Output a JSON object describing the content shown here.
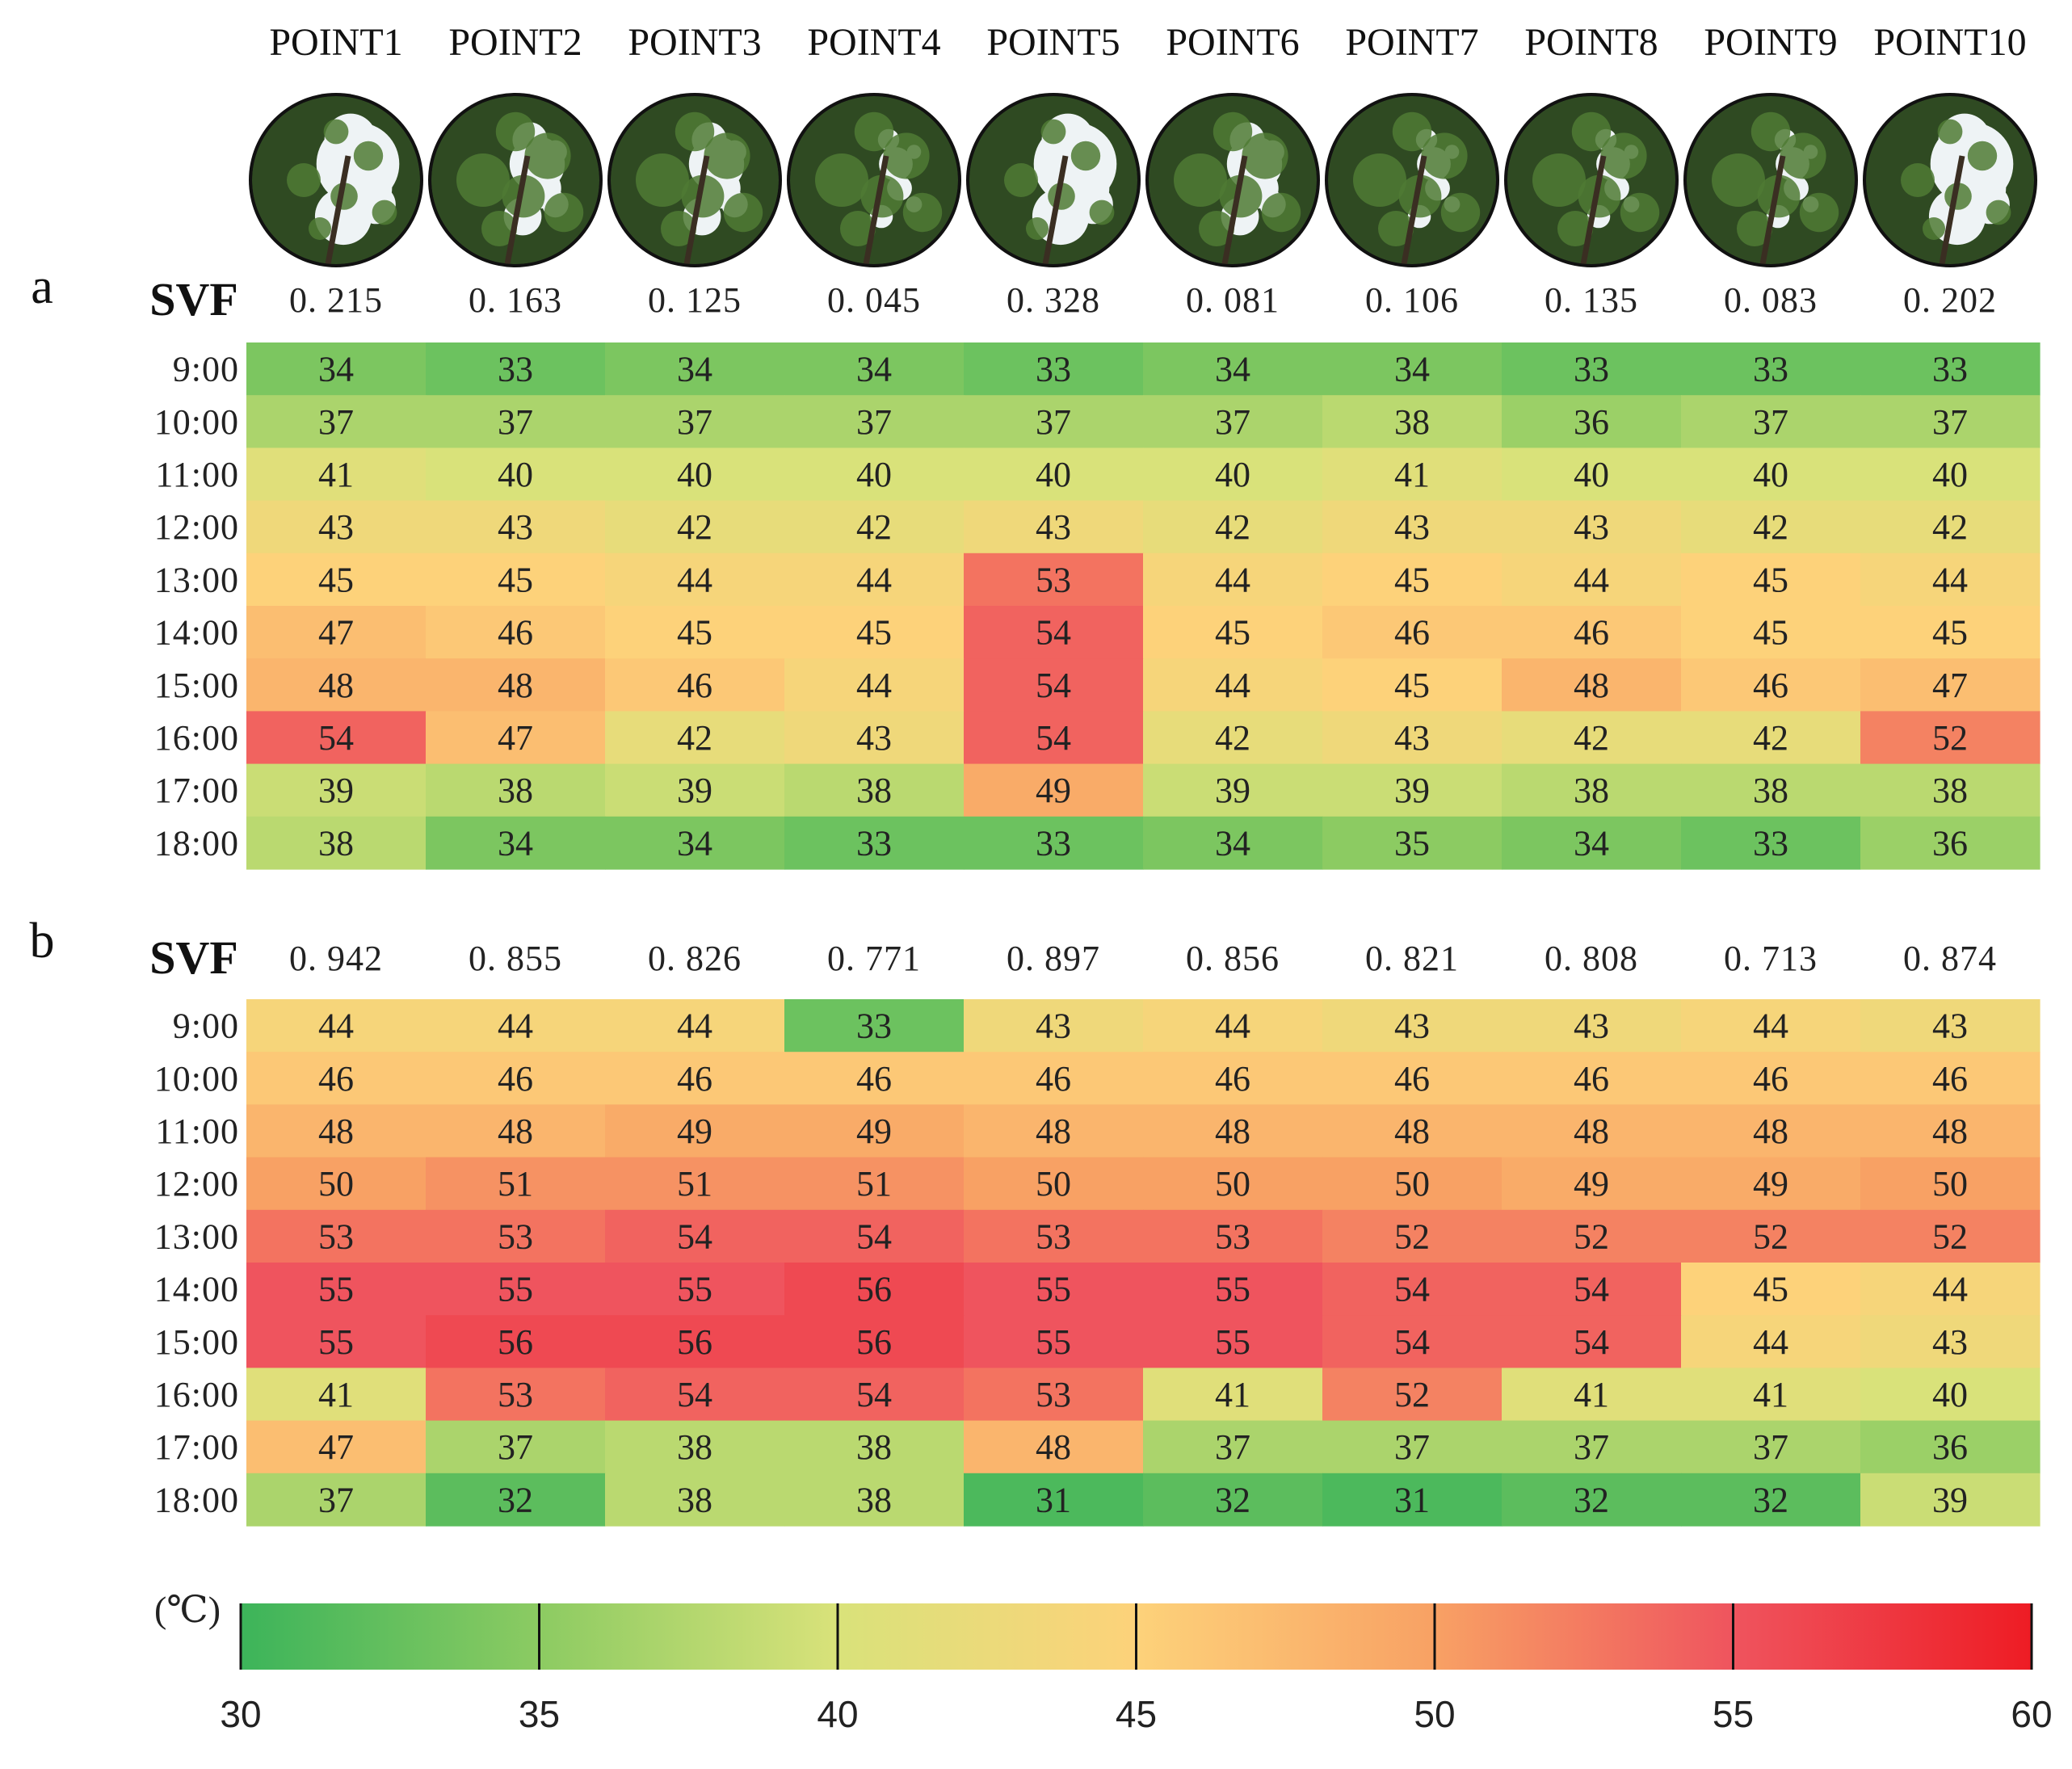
{
  "chart_data": {
    "type": "heatmap",
    "unit": "(℃)",
    "points": [
      "POINT1",
      "POINT2",
      "POINT3",
      "POINT4",
      "POINT5",
      "POINT6",
      "POINT7",
      "POINT8",
      "POINT9",
      "POINT10"
    ],
    "times": [
      "9:00",
      "10:00",
      "11:00",
      "12:00",
      "13:00",
      "14:00",
      "15:00",
      "16:00",
      "17:00",
      "18:00"
    ],
    "svf_label": "SVF",
    "panels": [
      {
        "label": "a",
        "svf": [
          "0. 215",
          "0. 163",
          "0. 125",
          "0. 045",
          "0. 328",
          "0. 081",
          "0. 106",
          "0. 135",
          "0. 083",
          "0. 202"
        ],
        "values": [
          [
            34,
            33,
            34,
            34,
            33,
            34,
            34,
            33,
            33,
            33
          ],
          [
            37,
            37,
            37,
            37,
            37,
            37,
            38,
            36,
            37,
            37
          ],
          [
            41,
            40,
            40,
            40,
            40,
            40,
            41,
            40,
            40,
            40
          ],
          [
            43,
            43,
            42,
            42,
            43,
            42,
            43,
            43,
            42,
            42
          ],
          [
            45,
            45,
            44,
            44,
            53,
            44,
            45,
            44,
            45,
            44
          ],
          [
            47,
            46,
            45,
            45,
            54,
            45,
            46,
            46,
            45,
            45
          ],
          [
            48,
            48,
            46,
            44,
            54,
            44,
            45,
            48,
            46,
            47
          ],
          [
            54,
            47,
            42,
            43,
            54,
            42,
            43,
            42,
            42,
            52
          ],
          [
            39,
            38,
            39,
            38,
            49,
            39,
            39,
            38,
            38,
            38
          ],
          [
            38,
            34,
            34,
            33,
            33,
            34,
            35,
            34,
            33,
            36
          ]
        ]
      },
      {
        "label": "b",
        "svf": [
          "0. 942",
          "0. 855",
          "0. 826",
          "0. 771",
          "0. 897",
          "0. 856",
          "0. 821",
          "0. 808",
          "0. 713",
          "0. 874"
        ],
        "values": [
          [
            44,
            44,
            44,
            33,
            43,
            44,
            43,
            43,
            44,
            43
          ],
          [
            46,
            46,
            46,
            46,
            46,
            46,
            46,
            46,
            46,
            46
          ],
          [
            48,
            48,
            49,
            49,
            48,
            48,
            48,
            48,
            48,
            48
          ],
          [
            50,
            51,
            51,
            51,
            50,
            50,
            50,
            49,
            49,
            50
          ],
          [
            53,
            53,
            54,
            54,
            53,
            53,
            52,
            52,
            52,
            52
          ],
          [
            55,
            55,
            55,
            56,
            55,
            55,
            54,
            54,
            45,
            44
          ],
          [
            55,
            56,
            56,
            56,
            55,
            55,
            54,
            54,
            44,
            43
          ],
          [
            41,
            53,
            54,
            54,
            53,
            41,
            52,
            41,
            41,
            40
          ],
          [
            47,
            37,
            38,
            38,
            48,
            37,
            37,
            37,
            37,
            36
          ],
          [
            37,
            32,
            38,
            38,
            31,
            32,
            31,
            32,
            32,
            39
          ]
        ]
      }
    ],
    "colorbar": {
      "min": 30,
      "max": 60,
      "ticks": [
        30,
        35,
        40,
        45,
        50,
        55,
        60
      ],
      "tick_labels": [
        "30",
        "35",
        "40",
        "45",
        "50",
        "55",
        "60"
      ],
      "stops": [
        {
          "value": 30,
          "color": "#3cb45a"
        },
        {
          "value": 35,
          "color": "#8ccb62"
        },
        {
          "value": 40,
          "color": "#d9e27a"
        },
        {
          "value": 45,
          "color": "#fdd27a"
        },
        {
          "value": 50,
          "color": "#f8a164"
        },
        {
          "value": 55,
          "color": "#ef545e"
        },
        {
          "value": 60,
          "color": "#ee1c24"
        }
      ]
    }
  }
}
